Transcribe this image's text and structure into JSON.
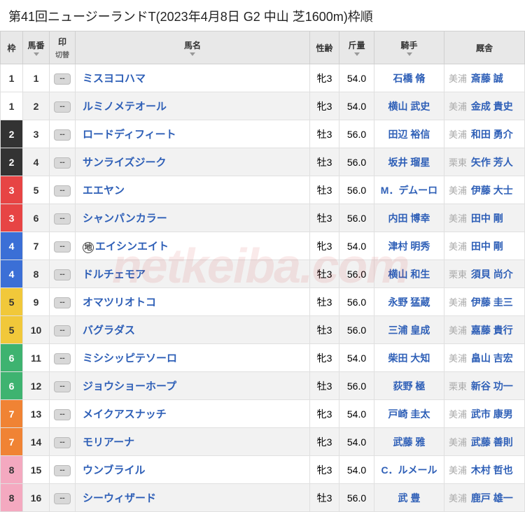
{
  "title": "第41回ニュージーランドT(2023年4月8日 G2 中山 芝1600m)枠順",
  "watermark": "netkeiba.com",
  "headers": {
    "waku": "枠",
    "umaban": "馬番",
    "in": "印",
    "in_sub": "切替",
    "name": "馬名",
    "seirei": "性齢",
    "kinryo": "斤量",
    "kishu": "騎手",
    "kyu": "厩舎"
  },
  "waku_colors": {
    "1": {
      "bg": "#ffffff",
      "fg": "#333333"
    },
    "2": {
      "bg": "#333333",
      "fg": "#ffffff"
    },
    "3": {
      "bg": "#e74444",
      "fg": "#ffffff"
    },
    "4": {
      "bg": "#3b6fd6",
      "fg": "#ffffff"
    },
    "5": {
      "bg": "#f1c83a",
      "fg": "#333333"
    },
    "6": {
      "bg": "#3eb370",
      "fg": "#ffffff"
    },
    "7": {
      "bg": "#f08334",
      "fg": "#ffffff"
    },
    "8": {
      "bg": "#f4a9c0",
      "fg": "#333333"
    }
  },
  "mark_label": "--",
  "rows": [
    {
      "waku": "1",
      "num": "1",
      "name": "ミスヨコハマ",
      "badge": "",
      "seirei": "牝3",
      "kg": "54.0",
      "kishu": "石橋 脩",
      "where": "美浦",
      "kyu": "斎藤 誠",
      "alt": false
    },
    {
      "waku": "1",
      "num": "2",
      "name": "ルミノメテオール",
      "badge": "",
      "seirei": "牝3",
      "kg": "54.0",
      "kishu": "横山 武史",
      "where": "美浦",
      "kyu": "金成 貴史",
      "alt": true
    },
    {
      "waku": "2",
      "num": "3",
      "name": "ロードディフィート",
      "badge": "",
      "seirei": "牡3",
      "kg": "56.0",
      "kishu": "田辺 裕信",
      "where": "美浦",
      "kyu": "和田 勇介",
      "alt": false
    },
    {
      "waku": "2",
      "num": "4",
      "name": "サンライズジーク",
      "badge": "",
      "seirei": "牡3",
      "kg": "56.0",
      "kishu": "坂井 瑠星",
      "where": "栗東",
      "kyu": "矢作 芳人",
      "alt": true
    },
    {
      "waku": "3",
      "num": "5",
      "name": "エエヤン",
      "badge": "",
      "seirei": "牡3",
      "kg": "56.0",
      "kishu": "M．デムーロ",
      "where": "美浦",
      "kyu": "伊藤 大士",
      "alt": false
    },
    {
      "waku": "3",
      "num": "6",
      "name": "シャンパンカラー",
      "badge": "",
      "seirei": "牡3",
      "kg": "56.0",
      "kishu": "内田 博幸",
      "where": "美浦",
      "kyu": "田中 剛",
      "alt": true
    },
    {
      "waku": "4",
      "num": "7",
      "name": "エイシンエイト",
      "badge": "地",
      "seirei": "牝3",
      "kg": "54.0",
      "kishu": "津村 明秀",
      "where": "美浦",
      "kyu": "田中 剛",
      "alt": false
    },
    {
      "waku": "4",
      "num": "8",
      "name": "ドルチェモア",
      "badge": "",
      "seirei": "牡3",
      "kg": "56.0",
      "kishu": "横山 和生",
      "where": "栗東",
      "kyu": "須貝 尚介",
      "alt": true
    },
    {
      "waku": "5",
      "num": "9",
      "name": "オマツリオトコ",
      "badge": "",
      "seirei": "牡3",
      "kg": "56.0",
      "kishu": "永野 猛蔵",
      "where": "美浦",
      "kyu": "伊藤 圭三",
      "alt": false
    },
    {
      "waku": "5",
      "num": "10",
      "name": "バグラダス",
      "badge": "",
      "seirei": "牡3",
      "kg": "56.0",
      "kishu": "三浦 皇成",
      "where": "美浦",
      "kyu": "嘉藤 貴行",
      "alt": true
    },
    {
      "waku": "6",
      "num": "11",
      "name": "ミシシッピテソーロ",
      "badge": "",
      "seirei": "牝3",
      "kg": "54.0",
      "kishu": "柴田 大知",
      "where": "美浦",
      "kyu": "畠山 吉宏",
      "alt": false
    },
    {
      "waku": "6",
      "num": "12",
      "name": "ジョウショーホープ",
      "badge": "",
      "seirei": "牡3",
      "kg": "56.0",
      "kishu": "荻野 極",
      "where": "栗東",
      "kyu": "新谷 功一",
      "alt": true
    },
    {
      "waku": "7",
      "num": "13",
      "name": "メイクアスナッチ",
      "badge": "",
      "seirei": "牝3",
      "kg": "54.0",
      "kishu": "戸崎 圭太",
      "where": "美浦",
      "kyu": "武市 康男",
      "alt": false
    },
    {
      "waku": "7",
      "num": "14",
      "name": "モリアーナ",
      "badge": "",
      "seirei": "牝3",
      "kg": "54.0",
      "kishu": "武藤 雅",
      "where": "美浦",
      "kyu": "武藤 善則",
      "alt": true
    },
    {
      "waku": "8",
      "num": "15",
      "name": "ウンブライル",
      "badge": "",
      "seirei": "牝3",
      "kg": "54.0",
      "kishu": "C．ルメール",
      "where": "美浦",
      "kyu": "木村 哲也",
      "alt": false
    },
    {
      "waku": "8",
      "num": "16",
      "name": "シーウィザード",
      "badge": "",
      "seirei": "牡3",
      "kg": "56.0",
      "kishu": "武 豊",
      "where": "美浦",
      "kyu": "鹿戸 雄一",
      "alt": true
    }
  ]
}
